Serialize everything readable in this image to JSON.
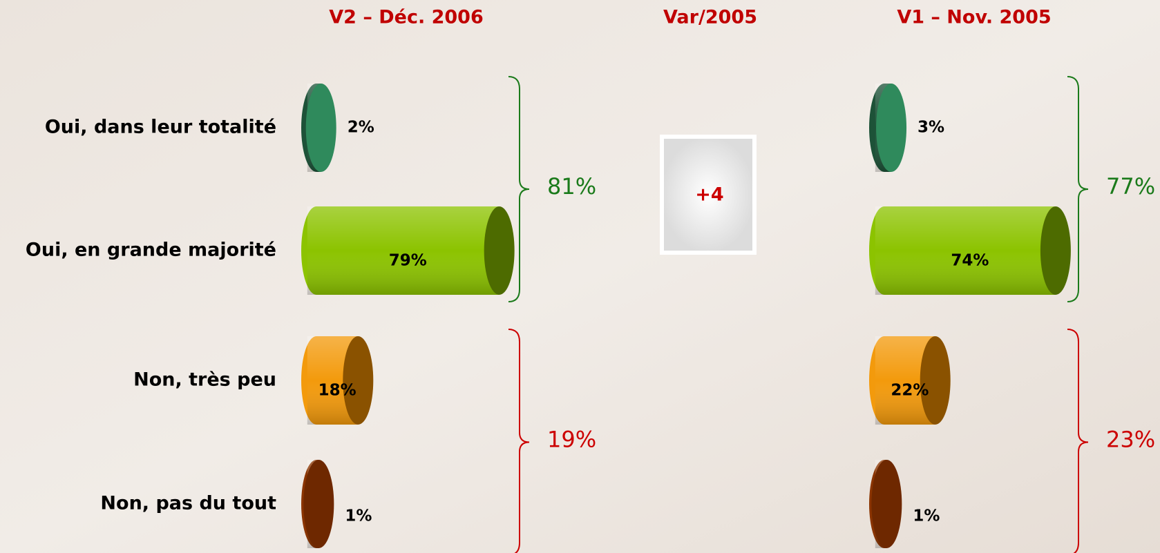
{
  "chart_data": {
    "type": "bar",
    "categories": [
      "Oui, dans leur totalité",
      "Oui, en grande majorité",
      "Non, très peu",
      "Non, pas du tout"
    ],
    "colors": [
      "#1d5238",
      "#8cc300",
      "#f39a0c",
      "#8a3400"
    ],
    "cap_colors": [
      "#2f8a5c",
      "#4d6b00",
      "#8a5200",
      "#6e2800"
    ],
    "xlim": [
      0,
      100
    ],
    "series": [
      {
        "name": "V2 – Déc. 2006",
        "values": [
          2,
          79,
          18,
          1
        ],
        "value_labels": [
          "2%",
          "79%",
          "18%",
          "1%"
        ],
        "group_labels": [
          "81%",
          "19%"
        ]
      },
      {
        "name": "V1 – Nov. 2005",
        "values": [
          3,
          74,
          22,
          1
        ],
        "value_labels": [
          "3%",
          "74%",
          "22%",
          "1%"
        ],
        "group_labels": [
          "77%",
          "23%"
        ]
      }
    ],
    "group_colors": [
      "#1a7a1a",
      "#cc0000"
    ],
    "variation": {
      "title": "Var/2005",
      "label": "+4"
    }
  }
}
